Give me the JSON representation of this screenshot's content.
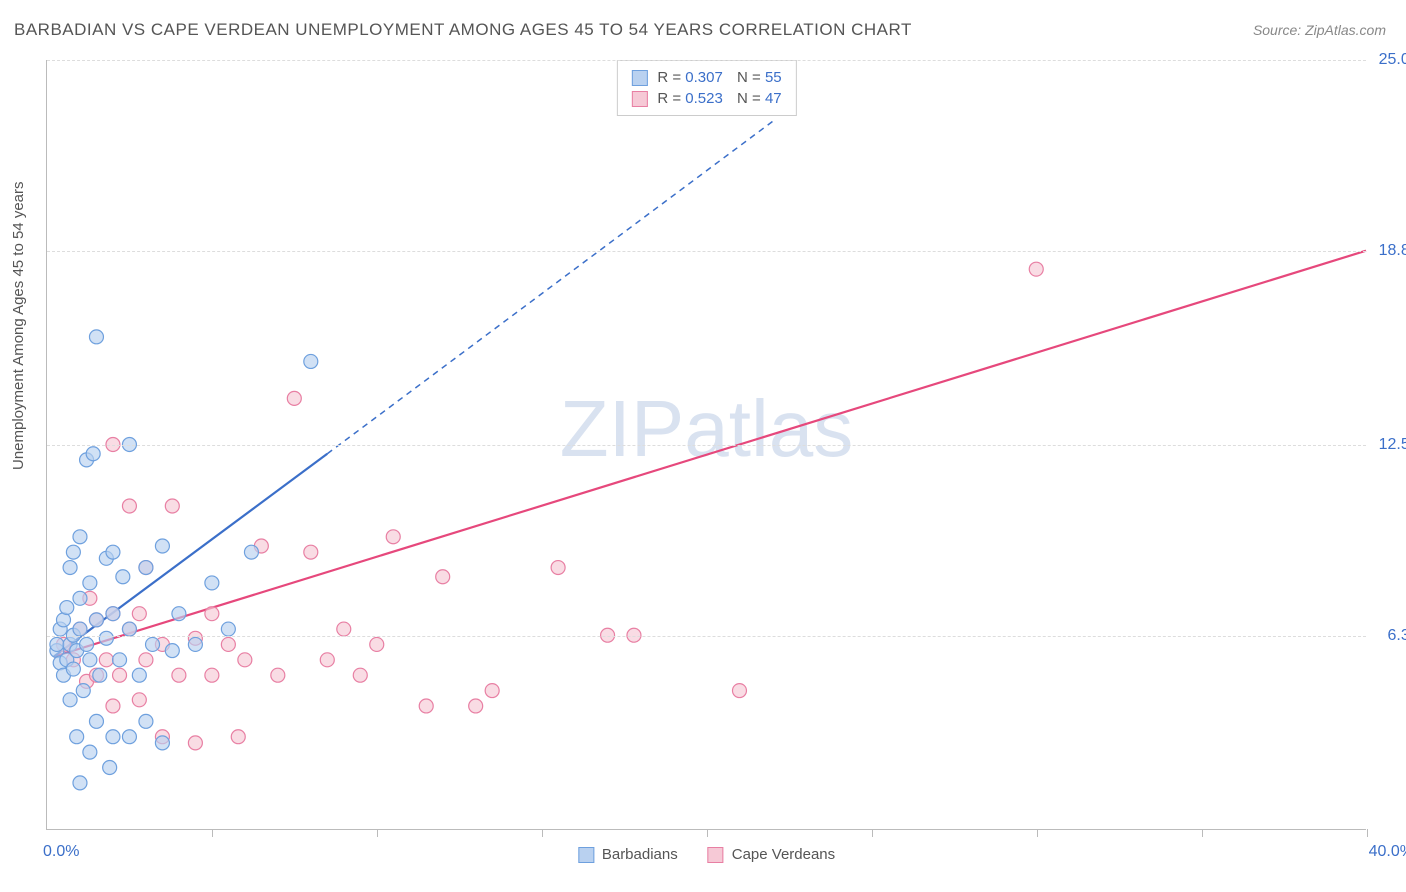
{
  "title": "BARBADIAN VS CAPE VERDEAN UNEMPLOYMENT AMONG AGES 45 TO 54 YEARS CORRELATION CHART",
  "source": "Source: ZipAtlas.com",
  "y_axis_label": "Unemployment Among Ages 45 to 54 years",
  "watermark": "ZIPatlas",
  "chart": {
    "type": "scatter",
    "xlim": [
      0,
      40
    ],
    "ylim": [
      0,
      25
    ],
    "x_origin_label": "0.0%",
    "x_end_label": "40.0%",
    "x_end_label_color": "#3b6fc9",
    "x_origin_label_color": "#3b6fc9",
    "y_ticks": [
      {
        "v": 6.3,
        "label": "6.3%"
      },
      {
        "v": 12.5,
        "label": "12.5%"
      },
      {
        "v": 18.8,
        "label": "18.8%"
      },
      {
        "v": 25.0,
        "label": "25.0%"
      }
    ],
    "y_tick_color": "#3b6fc9",
    "x_ticks_at": [
      5,
      10,
      15,
      20,
      25,
      30,
      35,
      40
    ],
    "grid_color": "#dddddd",
    "background_color": "#ffffff",
    "axis_color": "#bbbbbb",
    "marker_radius": 7,
    "marker_stroke_width": 1.2,
    "series": [
      {
        "name": "Barbadians",
        "fill": "#b9d1f0",
        "stroke": "#6ea0de",
        "swatch_fill": "#b9d1f0",
        "swatch_border": "#6ea0de",
        "R": "0.307",
        "N": "55",
        "trend": {
          "x1": 0.2,
          "y1": 5.6,
          "x2": 8.5,
          "y2": 12.2,
          "x2_ext": 22,
          "y2_ext": 23,
          "color": "#3b6fc9",
          "width": 2.2,
          "dash": "6 5"
        },
        "points": [
          [
            0.3,
            5.8
          ],
          [
            0.3,
            6.0
          ],
          [
            0.4,
            5.4
          ],
          [
            0.4,
            6.5
          ],
          [
            0.5,
            5.0
          ],
          [
            0.5,
            6.8
          ],
          [
            0.6,
            5.5
          ],
          [
            0.6,
            7.2
          ],
          [
            0.7,
            4.2
          ],
          [
            0.7,
            6.0
          ],
          [
            0.7,
            8.5
          ],
          [
            0.8,
            5.2
          ],
          [
            0.8,
            6.3
          ],
          [
            0.8,
            9.0
          ],
          [
            0.9,
            3.0
          ],
          [
            0.9,
            5.8
          ],
          [
            1.0,
            6.5
          ],
          [
            1.0,
            7.5
          ],
          [
            1.0,
            9.5
          ],
          [
            1.1,
            4.5
          ],
          [
            1.2,
            6.0
          ],
          [
            1.2,
            12.0
          ],
          [
            1.3,
            2.5
          ],
          [
            1.3,
            5.5
          ],
          [
            1.3,
            8.0
          ],
          [
            1.4,
            12.2
          ],
          [
            1.5,
            3.5
          ],
          [
            1.5,
            6.8
          ],
          [
            1.5,
            16.0
          ],
          [
            1.6,
            5.0
          ],
          [
            1.8,
            6.2
          ],
          [
            1.8,
            8.8
          ],
          [
            1.9,
            2.0
          ],
          [
            2.0,
            3.0
          ],
          [
            2.0,
            7.0
          ],
          [
            2.0,
            9.0
          ],
          [
            2.2,
            5.5
          ],
          [
            2.3,
            8.2
          ],
          [
            2.5,
            3.0
          ],
          [
            2.5,
            6.5
          ],
          [
            2.5,
            12.5
          ],
          [
            2.8,
            5.0
          ],
          [
            3.0,
            8.5
          ],
          [
            3.0,
            3.5
          ],
          [
            3.2,
            6.0
          ],
          [
            3.5,
            9.2
          ],
          [
            3.5,
            2.8
          ],
          [
            3.8,
            5.8
          ],
          [
            4.0,
            7.0
          ],
          [
            4.5,
            6.0
          ],
          [
            5.0,
            8.0
          ],
          [
            5.5,
            6.5
          ],
          [
            6.2,
            9.0
          ],
          [
            8.0,
            15.2
          ],
          [
            1.0,
            1.5
          ]
        ]
      },
      {
        "name": "Cape Verdeans",
        "fill": "#f6c9d6",
        "stroke": "#e87fa3",
        "swatch_fill": "#f6c9d6",
        "swatch_border": "#e87fa3",
        "R": "0.523",
        "N": "47",
        "trend": {
          "x1": 0.2,
          "y1": 5.6,
          "x2": 40,
          "y2": 18.8,
          "color": "#e6487c",
          "width": 2.2
        },
        "points": [
          [
            0.5,
            6.0
          ],
          [
            0.8,
            5.5
          ],
          [
            1.0,
            6.5
          ],
          [
            1.2,
            4.8
          ],
          [
            1.3,
            7.5
          ],
          [
            1.5,
            5.0
          ],
          [
            1.5,
            6.8
          ],
          [
            1.8,
            5.5
          ],
          [
            2.0,
            4.0
          ],
          [
            2.0,
            7.0
          ],
          [
            2.0,
            12.5
          ],
          [
            2.2,
            5.0
          ],
          [
            2.5,
            6.5
          ],
          [
            2.5,
            10.5
          ],
          [
            2.8,
            4.2
          ],
          [
            2.8,
            7.0
          ],
          [
            3.0,
            5.5
          ],
          [
            3.0,
            8.5
          ],
          [
            3.5,
            3.0
          ],
          [
            3.5,
            6.0
          ],
          [
            3.8,
            10.5
          ],
          [
            4.0,
            5.0
          ],
          [
            4.5,
            6.2
          ],
          [
            4.5,
            2.8
          ],
          [
            5.0,
            7.0
          ],
          [
            5.0,
            5.0
          ],
          [
            5.5,
            6.0
          ],
          [
            5.8,
            3.0
          ],
          [
            6.0,
            5.5
          ],
          [
            6.5,
            9.2
          ],
          [
            7.0,
            5.0
          ],
          [
            7.5,
            14.0
          ],
          [
            8.0,
            9.0
          ],
          [
            8.5,
            5.5
          ],
          [
            9.0,
            6.5
          ],
          [
            9.5,
            5.0
          ],
          [
            10.0,
            6.0
          ],
          [
            10.5,
            9.5
          ],
          [
            11.5,
            4.0
          ],
          [
            12.0,
            8.2
          ],
          [
            13.0,
            4.0
          ],
          [
            13.5,
            4.5
          ],
          [
            15.5,
            8.5
          ],
          [
            17.0,
            6.3
          ],
          [
            17.8,
            6.3
          ],
          [
            21.0,
            4.5
          ],
          [
            30.0,
            18.2
          ]
        ]
      }
    ]
  },
  "legend_bottom": [
    {
      "label": "Barbadians",
      "fill": "#b9d1f0",
      "border": "#6ea0de"
    },
    {
      "label": "Cape Verdeans",
      "fill": "#f6c9d6",
      "border": "#e87fa3"
    }
  ]
}
